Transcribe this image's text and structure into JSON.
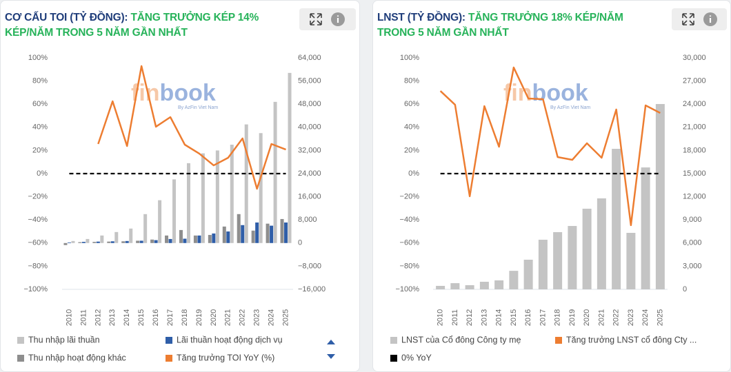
{
  "chart_data": [
    {
      "type": "combo",
      "title": "CƠ CẤU TOI (TỶ ĐỒNG):",
      "subtitle": "TĂNG TRƯỞNG KÉP 14% KÉP/NĂM TRONG 5 NĂM GẦN NHẤT",
      "watermark": [
        "fin",
        "book",
        "By AzFin Viet Nam"
      ],
      "categories": [
        "2010",
        "2011",
        "2012",
        "2013",
        "2014",
        "2015",
        "2016",
        "2017",
        "2018",
        "2019",
        "2020",
        "2021",
        "2022",
        "2023",
        "2024",
        "2025"
      ],
      "series": [
        {
          "name": "Thu nhập lãi thuần",
          "type": "bar",
          "axis": "y2",
          "color": "#c4c4c4",
          "values": [
            700,
            1400,
            2600,
            3800,
            5000,
            10000,
            14800,
            22000,
            27600,
            31000,
            32000,
            34000,
            41000,
            38000,
            48800,
            58800
          ]
        },
        {
          "name": "Lãi thuần hoạt động dịch vụ",
          "type": "bar",
          "axis": "y2",
          "color": "#2f5ea8",
          "values": [
            200,
            400,
            500,
            600,
            700,
            800,
            1000,
            1400,
            1500,
            2600,
            3300,
            4000,
            6200,
            7100,
            6000,
            7100
          ]
        },
        {
          "name": "Thu nhập hoạt động khác",
          "type": "bar",
          "axis": "y2",
          "color": "#8e8e8e",
          "values": [
            -700,
            300,
            400,
            500,
            600,
            800,
            1200,
            2600,
            4500,
            2600,
            2800,
            5700,
            10000,
            4300,
            6700,
            8300
          ]
        },
        {
          "name": "Tăng trưởng TOI YoY (%)",
          "type": "line",
          "axis": "y",
          "color": "#ed7d31",
          "values": [
            null,
            null,
            25.6,
            62.5,
            23.8,
            92.9,
            40.5,
            48.8,
            25,
            17.3,
            7.1,
            13.7,
            30.4,
            -13.1,
            25.6,
            20.8
          ]
        }
      ],
      "reference_line": {
        "value": 0,
        "color": "#000000"
      },
      "ylim": [
        -100,
        100
      ],
      "yticks": [
        {
          "value": -100,
          "label": "−100%"
        },
        {
          "value": -80,
          "label": "−80%"
        },
        {
          "value": -60,
          "label": "−60%"
        },
        {
          "value": -40,
          "label": "−40%"
        },
        {
          "value": -20,
          "label": "−20%"
        },
        {
          "value": 0,
          "label": "0%"
        },
        {
          "value": 20,
          "label": "20%"
        },
        {
          "value": 40,
          "label": "40%"
        },
        {
          "value": 60,
          "label": "60%"
        },
        {
          "value": 80,
          "label": "80%"
        },
        {
          "value": 100,
          "label": "100%"
        }
      ],
      "y2lim": [
        -16000,
        64000
      ],
      "y2ticks": [
        {
          "value": -16000,
          "label": "−16,000"
        },
        {
          "value": -8000,
          "label": "−8,000"
        },
        0,
        {
          "value": 8000,
          "label": "8,000"
        },
        {
          "value": 16000,
          "label": "16,000"
        },
        {
          "value": 24000,
          "label": "24,000"
        },
        {
          "value": 32000,
          "label": "32,000"
        },
        {
          "value": 40000,
          "label": "40,000"
        },
        {
          "value": 48000,
          "label": "48,000"
        },
        {
          "value": 56000,
          "label": "56,000"
        },
        {
          "value": 64000,
          "label": "64,000"
        }
      ]
    },
    {
      "type": "combo",
      "title": "LNST (TỶ ĐỒNG):",
      "subtitle": "TĂNG TRƯỞNG 18% KÉP/NĂM TRONG 5 NĂM GẦN NHẤT",
      "watermark": [
        "fin",
        "book",
        "By AzFin Viet Nam"
      ],
      "categories": [
        "2010",
        "2011",
        "2012",
        "2013",
        "2014",
        "2015",
        "2016",
        "2017",
        "2018",
        "2019",
        "2020",
        "2021",
        "2022",
        "2023",
        "2024",
        "2025"
      ],
      "series": [
        {
          "name": "LNST của Cổ đông Công ty mẹ",
          "type": "bar",
          "axis": "y2",
          "color": "#c4c4c4",
          "values": [
            450,
            800,
            540,
            980,
            1160,
            2400,
            3840,
            6430,
            7410,
            8210,
            10450,
            11790,
            18210,
            7320,
            15800,
            24020
          ]
        },
        {
          "name": "Tăng trưởng LNST cổ đông Cty ...",
          "type": "line",
          "axis": "y",
          "color": "#ed7d31",
          "values": [
            71.4,
            59.5,
            -19.6,
            58.3,
            23.2,
            91.7,
            64.9,
            64.3,
            14.3,
            11.9,
            26.2,
            13.7,
            55.4,
            -44.6,
            58.9,
            52.4
          ]
        }
      ],
      "reference_line": {
        "name": "0% YoY",
        "value": 0,
        "color": "#000000"
      },
      "ylim": [
        -100,
        100
      ],
      "yticks": [
        {
          "value": -100,
          "label": "−100%"
        },
        {
          "value": -80,
          "label": "−80%"
        },
        {
          "value": -60,
          "label": "−60%"
        },
        {
          "value": -40,
          "label": "−40%"
        },
        {
          "value": -20,
          "label": "−20%"
        },
        {
          "value": 0,
          "label": "0%"
        },
        {
          "value": 20,
          "label": "20%"
        },
        {
          "value": 40,
          "label": "40%"
        },
        {
          "value": 60,
          "label": "60%"
        },
        {
          "value": 80,
          "label": "80%"
        },
        {
          "value": 100,
          "label": "100%"
        }
      ],
      "y2lim": [
        0,
        30000
      ],
      "y2ticks": [
        0,
        {
          "value": 3000,
          "label": "3,000"
        },
        {
          "value": 6000,
          "label": "6,000"
        },
        {
          "value": 9000,
          "label": "9,000"
        },
        {
          "value": 12000,
          "label": "12,000"
        },
        {
          "value": 15000,
          "label": "15,000"
        },
        {
          "value": 18000,
          "label": "18,000"
        },
        {
          "value": 21000,
          "label": "21,000"
        },
        {
          "value": 24000,
          "label": "24,000"
        },
        {
          "value": 27000,
          "label": "27,000"
        },
        {
          "value": 30000,
          "label": "30,000"
        }
      ]
    }
  ]
}
